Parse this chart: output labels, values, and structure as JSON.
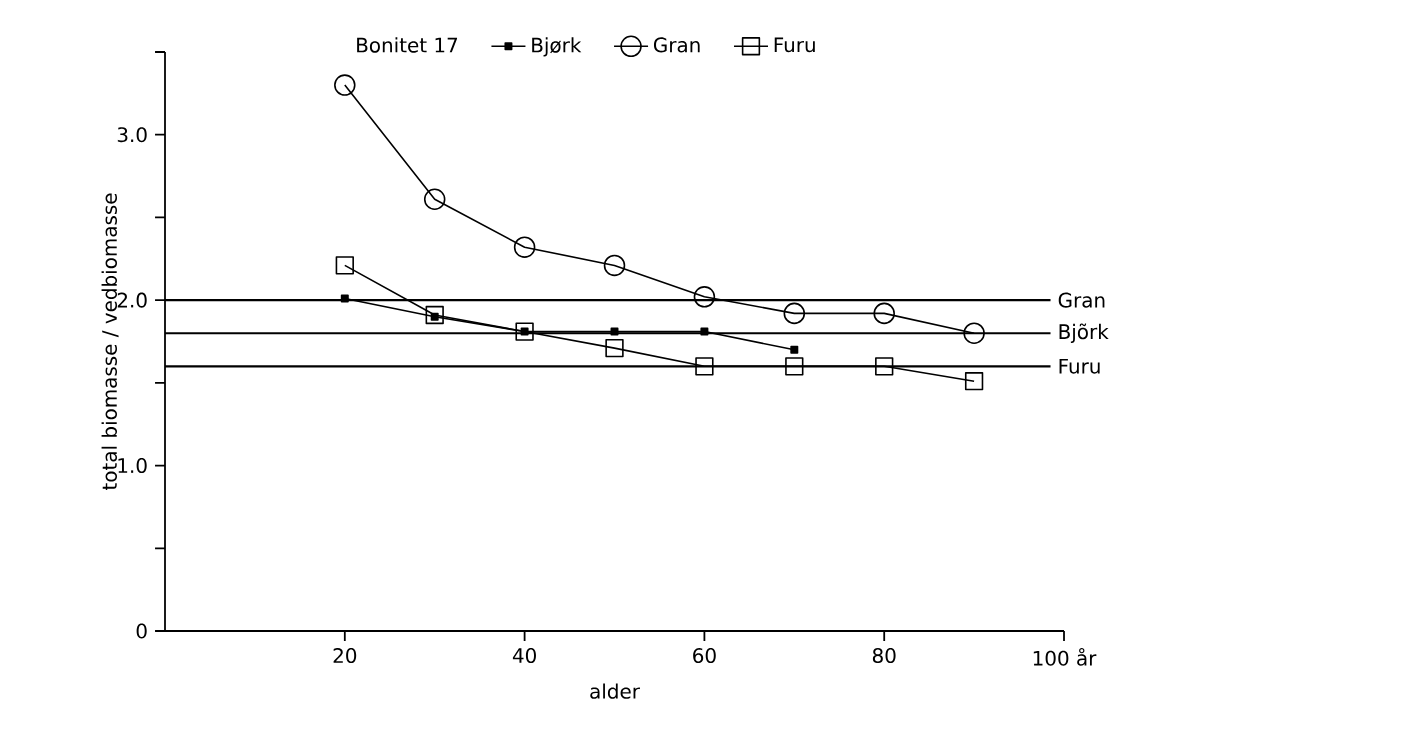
{
  "chart_data": {
    "type": "line",
    "xlabel": "alder",
    "ylabel": "total biomasse / vedbiomasse",
    "legend_title": "Bonitet 17",
    "x": [
      20,
      30,
      40,
      50,
      60,
      70,
      80,
      90
    ],
    "series": [
      {
        "name": "Bjørk",
        "color": "#000000",
        "marker": "square",
        "values": [
          2.01,
          1.9,
          1.81,
          1.81,
          1.81,
          1.7,
          null,
          null
        ]
      },
      {
        "name": "Gran",
        "color": "#000000",
        "marker": "circle",
        "values": [
          3.3,
          2.61,
          2.32,
          2.21,
          2.02,
          1.92,
          1.92,
          1.8
        ]
      },
      {
        "name": "Furu",
        "color": "#000000",
        "marker": "square",
        "values": [
          2.21,
          1.91,
          1.81,
          1.71,
          1.6,
          1.6,
          1.6,
          1.51
        ]
      }
    ],
    "ref_lines": [
      {
        "axis": "y",
        "value": 2.0,
        "label": "Gran",
        "color": "#000000"
      },
      {
        "axis": "y",
        "value": 1.8,
        "label": "Bjõrk",
        "color": "#000000"
      },
      {
        "axis": "y",
        "value": 1.6,
        "label": "Furu",
        "color": "#000000"
      }
    ],
    "xlim": [
      0,
      100
    ],
    "ylim": [
      0,
      3.5
    ],
    "xticks": [
      20,
      40,
      60,
      80,
      {
        "value": 100,
        "label": "100 år"
      }
    ],
    "yticks": [
      0,
      {
        "value": 0.5,
        "label": null
      },
      {
        "value": 1.0,
        "label": "1.0"
      },
      {
        "value": 1.5,
        "label": null
      },
      {
        "value": 2.0,
        "label": "2.0"
      },
      {
        "value": 2.5,
        "label": null
      },
      {
        "value": 3.0,
        "label": "3.0"
      },
      {
        "value": 3.5,
        "label": null
      }
    ],
    "legend": "top",
    "grid": false,
    "line_style": "solid"
  }
}
